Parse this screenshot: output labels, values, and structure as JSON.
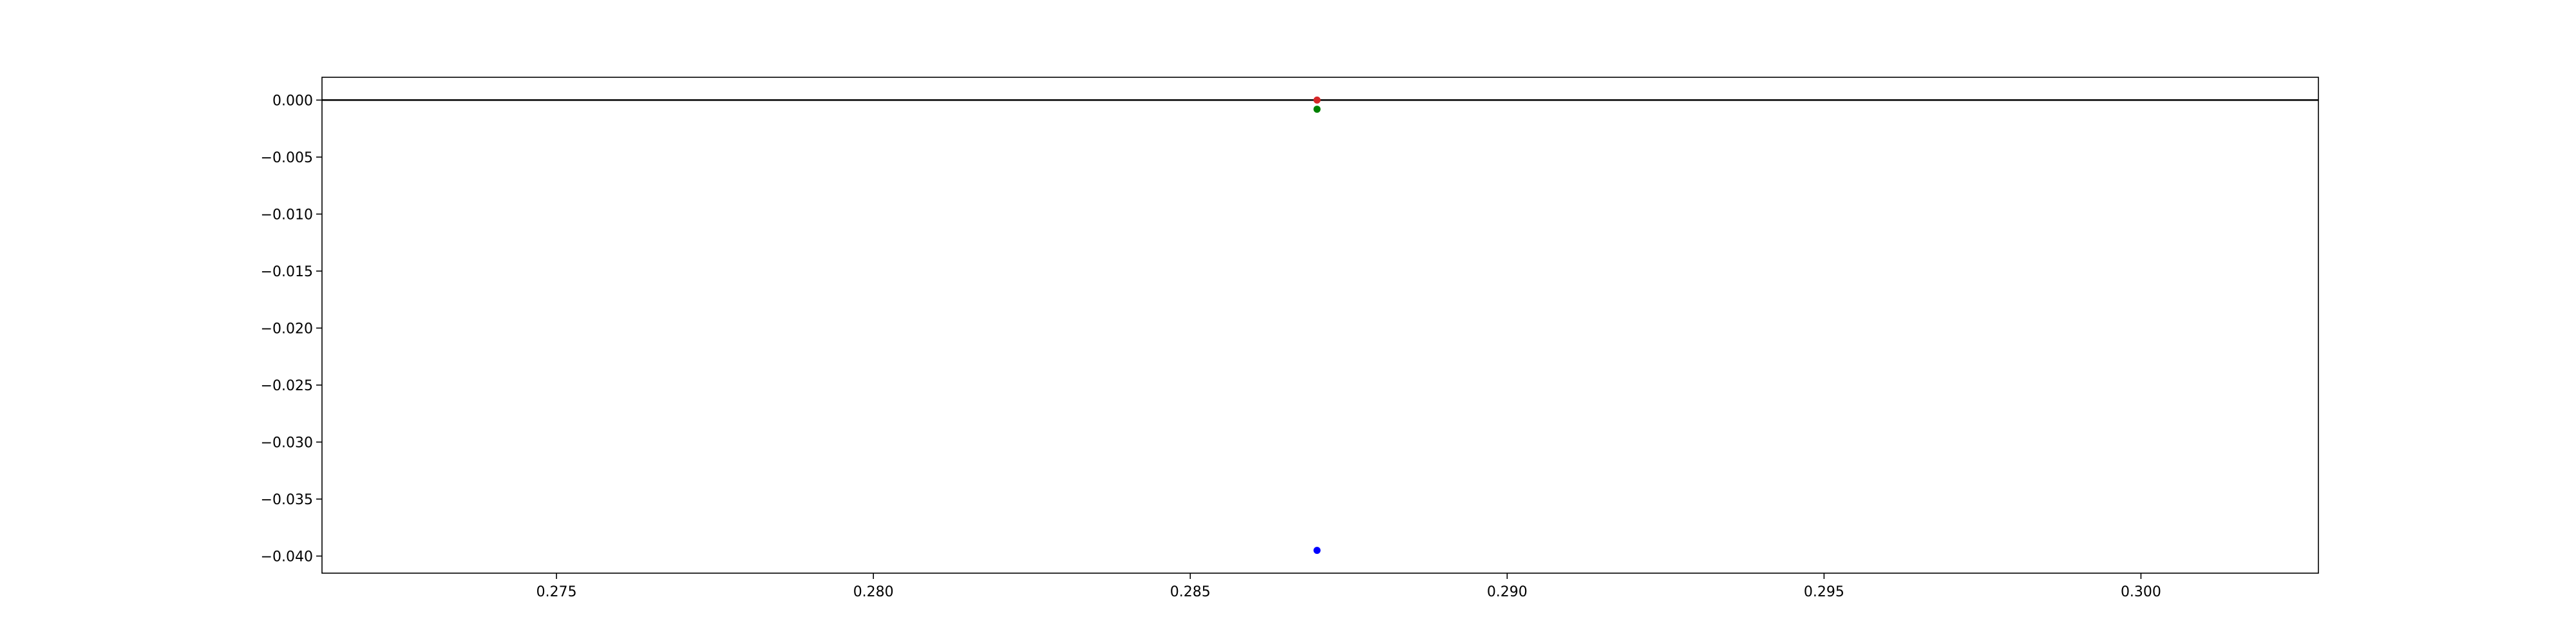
{
  "chart_data": {
    "type": "scatter",
    "title": "",
    "xlabel": "",
    "ylabel": "",
    "xlim": [
      0.2713,
      0.3028
    ],
    "ylim": [
      -0.0415,
      0.002
    ],
    "x_ticks": [
      0.275,
      0.28,
      0.285,
      0.29,
      0.295,
      0.3
    ],
    "x_tick_labels": [
      "0.275",
      "0.280",
      "0.285",
      "0.290",
      "0.295",
      "0.300"
    ],
    "y_ticks": [
      0.0,
      -0.005,
      -0.01,
      -0.015,
      -0.02,
      -0.025,
      -0.03,
      -0.035,
      -0.04
    ],
    "y_tick_labels": [
      "0.000",
      "−0.005",
      "−0.010",
      "−0.015",
      "−0.020",
      "−0.025",
      "−0.030",
      "−0.035",
      "−0.040"
    ],
    "reference_line": {
      "y": 0.0,
      "color": "#000000"
    },
    "grid": false,
    "legend": "none",
    "series": [
      {
        "color": "#d62728",
        "points": [
          {
            "x": 0.287,
            "y": 0.0
          }
        ]
      },
      {
        "color": "#008000",
        "points": [
          {
            "x": 0.287,
            "y": -0.0008
          }
        ]
      },
      {
        "color": "#0000ff",
        "points": [
          {
            "x": 0.287,
            "y": -0.0395
          }
        ]
      }
    ]
  }
}
